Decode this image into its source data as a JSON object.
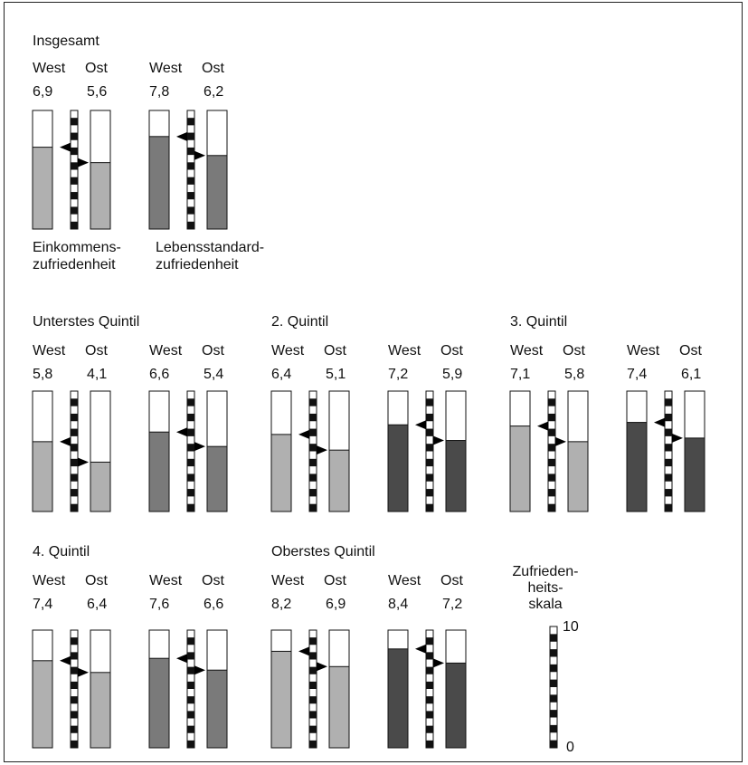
{
  "chart_data": {
    "type": "bar",
    "scale": {
      "label": [
        "Zufrieden-",
        "heits-",
        "skala"
      ],
      "min": 0,
      "max": 10,
      "min_label": "0",
      "max_label": "10"
    },
    "series_labels": {
      "west": "West",
      "ost": "Ost",
      "income": [
        "Einkommens-",
        "zufriedenheit"
      ],
      "living": [
        "Lebensstandard-",
        "zufriedenheit"
      ]
    },
    "colors": {
      "income_fill": "#b0b0b0",
      "living_fill": "#7a7a7a",
      "living_fill_dark": "#4a4a4a",
      "frame": "#222222"
    },
    "groups": [
      {
        "title": "Insgesamt",
        "income": {
          "west": 6.9,
          "ost": 5.6,
          "west_label": "6,9",
          "ost_label": "5,6"
        },
        "living": {
          "west": 7.8,
          "ost": 6.2,
          "west_label": "7,8",
          "ost_label": "6,2"
        }
      },
      {
        "title": "Unterstes Quintil",
        "income": {
          "west": 5.8,
          "ost": 4.1,
          "west_label": "5,8",
          "ost_label": "4,1"
        },
        "living": {
          "west": 6.6,
          "ost": 5.4,
          "west_label": "6,6",
          "ost_label": "5,4"
        }
      },
      {
        "title": "2. Quintil",
        "income": {
          "west": 6.4,
          "ost": 5.1,
          "west_label": "6,4",
          "ost_label": "5,1"
        },
        "living": {
          "west": 7.2,
          "ost": 5.9,
          "west_label": "7,2",
          "ost_label": "5,9"
        }
      },
      {
        "title": "3. Quintil",
        "income": {
          "west": 7.1,
          "ost": 5.8,
          "west_label": "7,1",
          "ost_label": "5,8"
        },
        "living": {
          "west": 7.4,
          "ost": 6.1,
          "west_label": "7,4",
          "ost_label": "6,1"
        }
      },
      {
        "title": "4. Quintil",
        "income": {
          "west": 7.4,
          "ost": 6.4,
          "west_label": "7,4",
          "ost_label": "6,4"
        },
        "living": {
          "west": 7.6,
          "ost": 6.6,
          "west_label": "7,6",
          "ost_label": "6,6"
        }
      },
      {
        "title": "Oberstes Quintil",
        "income": {
          "west": 8.2,
          "ost": 6.9,
          "west_label": "8,2",
          "ost_label": "6,9"
        },
        "living": {
          "west": 8.4,
          "ost": 7.2,
          "west_label": "8,4",
          "ost_label": "7,2"
        }
      }
    ]
  }
}
